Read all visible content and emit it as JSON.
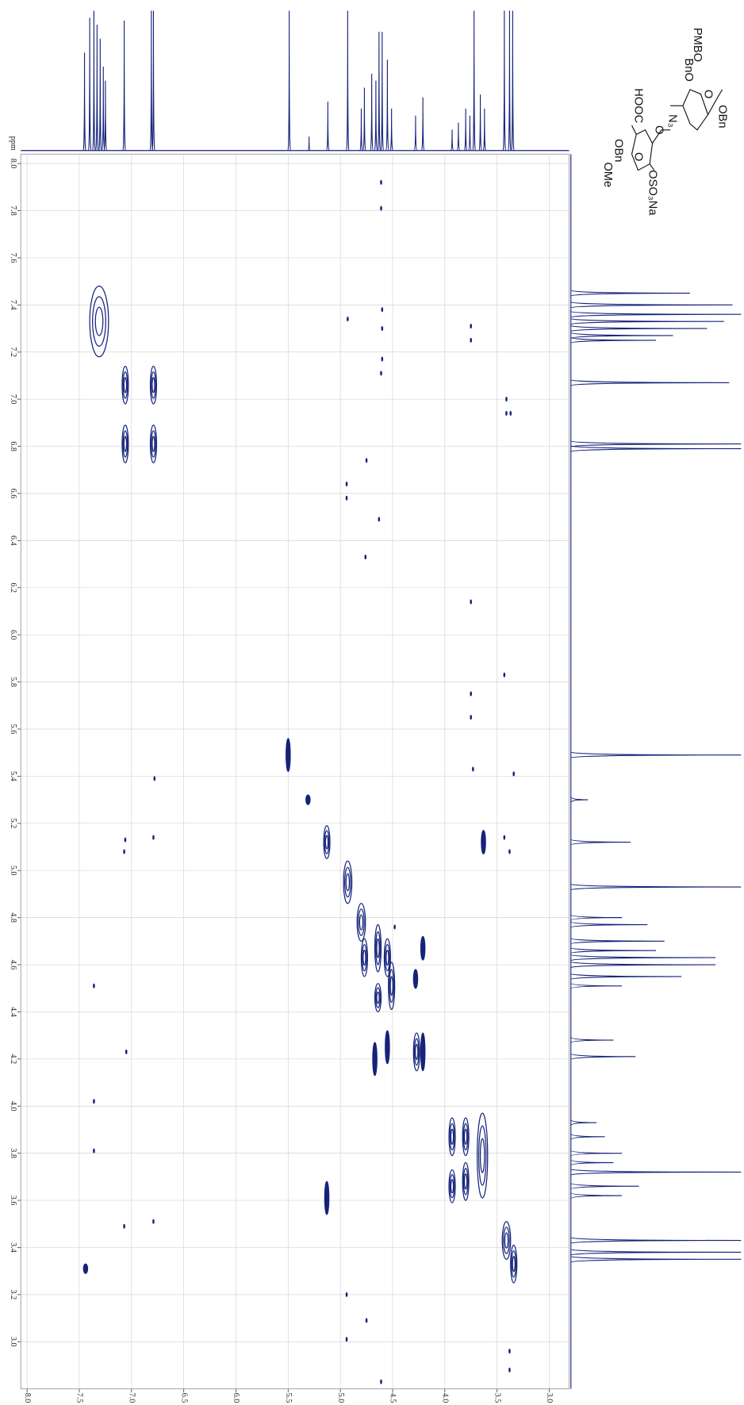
{
  "chart_data": {
    "type": "contour",
    "y_label": "ppm",
    "color": "#16237a",
    "grid": true,
    "xlim": [
      8.06,
      2.81
    ],
    "ylim": [
      8.04,
      2.8
    ],
    "xticks": [
      {
        "value": 8,
        "label": "8.0"
      },
      7.5,
      {
        "value": 7,
        "label": "7.0"
      },
      6.5,
      {
        "value": 6,
        "label": "6.0"
      },
      5.5,
      {
        "value": 5,
        "label": "5.0"
      },
      4.5,
      {
        "value": 4,
        "label": "4.0"
      },
      3.5,
      {
        "value": 3,
        "label": "3.0"
      }
    ],
    "yticks": [
      {
        "value": 8,
        "label": "8.0"
      },
      7.8,
      7.6,
      7.4,
      7.2,
      {
        "value": 7,
        "label": "7.0"
      },
      6.8,
      6.6,
      6.4,
      6.2,
      {
        "value": 6,
        "label": "6.0"
      },
      5.8,
      5.6,
      5.4,
      5.2,
      {
        "value": 5,
        "label": "5.0"
      },
      4.8,
      4.6,
      4.4,
      4.2,
      {
        "value": 4,
        "label": "4.0"
      },
      3.8,
      3.6,
      3.4,
      3.2,
      {
        "value": 3,
        "label": "3.0"
      }
    ],
    "peaks": {
      "x": [
        7.31,
        7.06,
        6.79,
        7.06,
        6.79,
        5.5,
        5.31,
        5.13,
        4.93,
        4.8,
        4.77,
        4.64,
        4.64,
        4.55,
        4.51,
        4.21,
        4.28,
        4.67,
        4.55,
        4.27,
        4.21,
        3.93,
        3.93,
        3.8,
        3.8,
        3.64,
        3.63,
        5.13,
        3.41,
        3.34,
        7.44,
        4.61,
        4.61,
        4.6,
        4.6,
        4.93,
        3.75,
        3.75,
        4.6,
        4.61,
        3.41,
        3.41,
        3.37,
        4.75,
        4.94,
        4.94,
        4.63,
        4.76,
        3.75,
        3.43,
        3.75,
        3.75,
        6.78,
        3.34,
        3.73,
        7.06,
        7.07,
        6.79,
        3.43,
        3.38,
        4.48,
        7.36,
        7.05,
        7.36,
        7.36,
        6.79,
        7.07,
        4.94,
        4.75,
        4.94,
        3.38,
        3.38,
        4.61
      ],
      "y": [
        7.33,
        7.06,
        7.06,
        6.81,
        6.81,
        5.49,
        5.3,
        5.12,
        4.95,
        4.78,
        4.63,
        4.67,
        4.46,
        4.63,
        4.51,
        4.67,
        4.54,
        4.2,
        4.25,
        4.23,
        4.23,
        3.87,
        3.66,
        3.87,
        3.68,
        3.79,
        5.12,
        3.61,
        3.43,
        3.33,
        3.31,
        7.92,
        7.81,
        7.38,
        7.3,
        7.34,
        7.31,
        7.25,
        7.17,
        7.11,
        7.0,
        6.94,
        6.94,
        6.74,
        6.64,
        6.58,
        6.49,
        6.33,
        6.14,
        5.83,
        5.75,
        5.65,
        5.39,
        5.41,
        5.43,
        5.13,
        5.08,
        5.14,
        5.14,
        5.08,
        4.76,
        4.51,
        4.23,
        4.02,
        3.81,
        3.51,
        3.49,
        3.2,
        3.09,
        3.01,
        2.96,
        2.88,
        2.83
      ],
      "dx": [
        0.09,
        0.03,
        0.03,
        0.03,
        0.03,
        0.02,
        0.02,
        0.03,
        0.04,
        0.04,
        0.03,
        0.03,
        0.03,
        0.03,
        0.03,
        0.02,
        0.02,
        0.02,
        0.02,
        0.03,
        0.02,
        0.03,
        0.03,
        0.03,
        0.03,
        0.05,
        0.02,
        0.02,
        0.04,
        0.03,
        0.02,
        0.005,
        0.005,
        0.005,
        0.005,
        0.005,
        0.005,
        0.005,
        0.005,
        0.005,
        0.005,
        0.005,
        0.005,
        0.005,
        0.005,
        0.005,
        0.005,
        0.005,
        0.005,
        0.005,
        0.005,
        0.005,
        0.005,
        0.005,
        0.005,
        0.005,
        0.005,
        0.005,
        0.005,
        0.005,
        0.005,
        0.005,
        0.005,
        0.005,
        0.005,
        0.005,
        0.005,
        0.005,
        0.005,
        0.005,
        0.005,
        0.005,
        0.005
      ],
      "dy": [
        0.15,
        0.08,
        0.08,
        0.08,
        0.08,
        0.07,
        0.02,
        0.07,
        0.09,
        0.08,
        0.08,
        0.1,
        0.06,
        0.08,
        0.1,
        0.05,
        0.04,
        0.07,
        0.07,
        0.08,
        0.08,
        0.08,
        0.07,
        0.08,
        0.08,
        0.18,
        0.05,
        0.07,
        0.08,
        0.08,
        0.02,
        0.008,
        0.008,
        0.008,
        0.008,
        0.008,
        0.008,
        0.008,
        0.008,
        0.008,
        0.008,
        0.008,
        0.008,
        0.008,
        0.008,
        0.008,
        0.008,
        0.008,
        0.008,
        0.008,
        0.008,
        0.008,
        0.008,
        0.008,
        0.008,
        0.008,
        0.008,
        0.008,
        0.008,
        0.008,
        0.008,
        0.008,
        0.008,
        0.008,
        0.008,
        0.008,
        0.008,
        0.008,
        0.008,
        0.008,
        0.008,
        0.008,
        0.008
      ]
    },
    "projection": {
      "ppm": [
        7.45,
        7.4,
        7.36,
        7.33,
        7.3,
        7.27,
        7.25,
        7.07,
        6.81,
        6.79,
        5.49,
        5.3,
        5.12,
        4.93,
        4.8,
        4.77,
        4.7,
        4.66,
        4.63,
        4.6,
        4.55,
        4.51,
        4.28,
        4.21,
        3.93,
        3.87,
        3.8,
        3.76,
        3.72,
        3.66,
        3.62,
        3.43,
        3.38,
        3.35
      ],
      "height": [
        0.7,
        0.95,
        1.0,
        0.9,
        0.8,
        0.6,
        0.5,
        0.93,
        1.0,
        1.0,
        1.0,
        0.1,
        0.35,
        1.0,
        0.3,
        0.45,
        0.55,
        0.5,
        0.85,
        0.85,
        0.65,
        0.3,
        0.25,
        0.38,
        0.15,
        0.2,
        0.3,
        0.25,
        1.0,
        0.4,
        0.3,
        1.0,
        1.0,
        1.0
      ]
    }
  },
  "structure": {
    "labels": [
      "PMBO",
      "BnO",
      "OBn",
      "O",
      "N₃",
      "O",
      "HOOC",
      "O",
      "OSO₃Na",
      "OBn",
      "OMe"
    ]
  }
}
